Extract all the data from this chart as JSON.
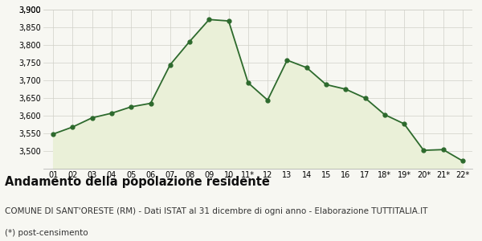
{
  "x_labels": [
    "01",
    "02",
    "03",
    "04",
    "05",
    "06",
    "07",
    "08",
    "09",
    "10",
    "11*",
    "12",
    "13",
    "14",
    "15",
    "16",
    "17",
    "18*",
    "19*",
    "20*",
    "21*",
    "22*"
  ],
  "y_values": [
    3548,
    3568,
    3594,
    3607,
    3625,
    3635,
    3744,
    3810,
    3872,
    3868,
    3693,
    3644,
    3757,
    3736,
    3688,
    3675,
    3650,
    3603,
    3577,
    3502,
    3504,
    3472
  ],
  "ylim": [
    3450,
    3900
  ],
  "yticks": [
    3500,
    3550,
    3600,
    3650,
    3700,
    3750,
    3800,
    3850,
    3900
  ],
  "ytick_top": 3900,
  "line_color": "#2d6a2d",
  "fill_color": "#eaf0d8",
  "marker_color": "#2d6a2d",
  "bg_color": "#f7f7f2",
  "grid_color": "#d0d0c8",
  "title": "Andamento della popolazione residente",
  "subtitle": "COMUNE DI SANT'ORESTE (RM) - Dati ISTAT al 31 dicembre di ogni anno - Elaborazione TUTTITALIA.IT",
  "footnote": "(*) post-censimento",
  "title_fontsize": 10.5,
  "subtitle_fontsize": 7.5,
  "footnote_fontsize": 7.5
}
